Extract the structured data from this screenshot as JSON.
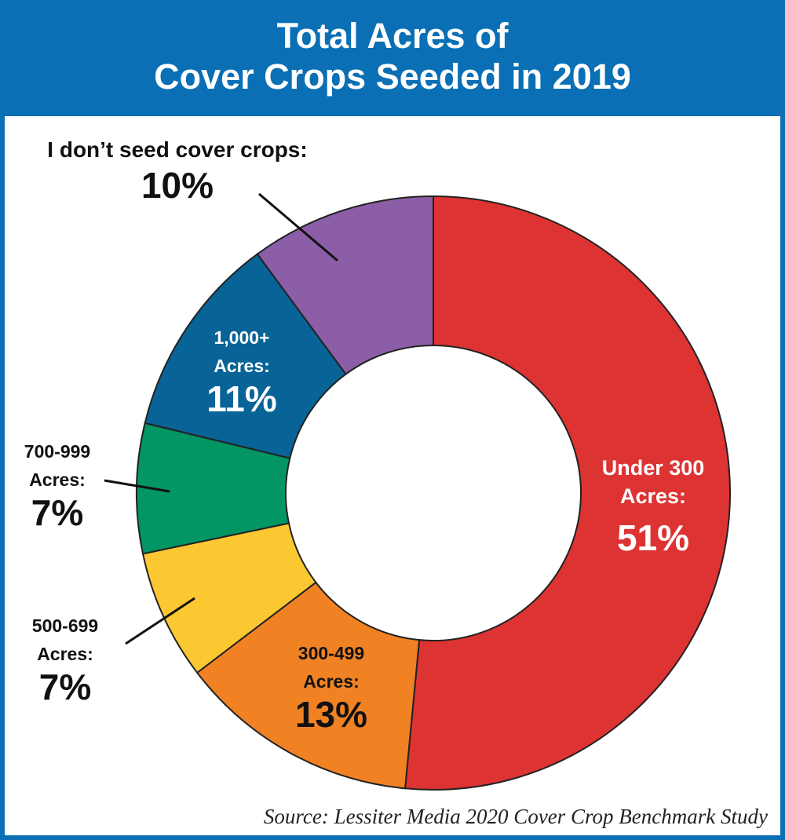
{
  "header": {
    "title_line1": "Total Acres of",
    "title_line2": "Cover Crops Seeded in 2019"
  },
  "source": "Source: Lessiter Media 2020 Cover Crop Benchmark Study",
  "chart_data": {
    "type": "pie",
    "variant": "donut",
    "title": "Total Acres of Cover Crops Seeded in 2019",
    "categories": [
      "Under 300 Acres",
      "300-499 Acres",
      "500-699 Acres",
      "700-999 Acres",
      "1,000+ Acres",
      "I don't seed cover crops"
    ],
    "values": [
      51,
      13,
      7,
      7,
      11,
      10
    ],
    "unit": "%",
    "colors": [
      "#dd3333",
      "#f08224",
      "#fcc832",
      "#039563",
      "#086396",
      "#8c5ea7"
    ],
    "slice_labels": [
      {
        "line1": "Under 300",
        "line2": "Acres:",
        "pct": "51%",
        "color": "#ffffff"
      },
      {
        "line1": "300-499",
        "line2": "Acres:",
        "pct": "13%",
        "color": "#111111"
      },
      {
        "line1": "500-699",
        "line2": "Acres:",
        "pct": "7%",
        "color": "#111111"
      },
      {
        "line1": "700-999",
        "line2": "Acres:",
        "pct": "7%",
        "color": "#111111"
      },
      {
        "line1": "1,000+",
        "line2": "Acres:",
        "pct": "11%",
        "color": "#ffffff"
      },
      {
        "line1": "I don’t seed cover crops:",
        "line2": "",
        "pct": "10%",
        "color": "#111111"
      }
    ]
  }
}
